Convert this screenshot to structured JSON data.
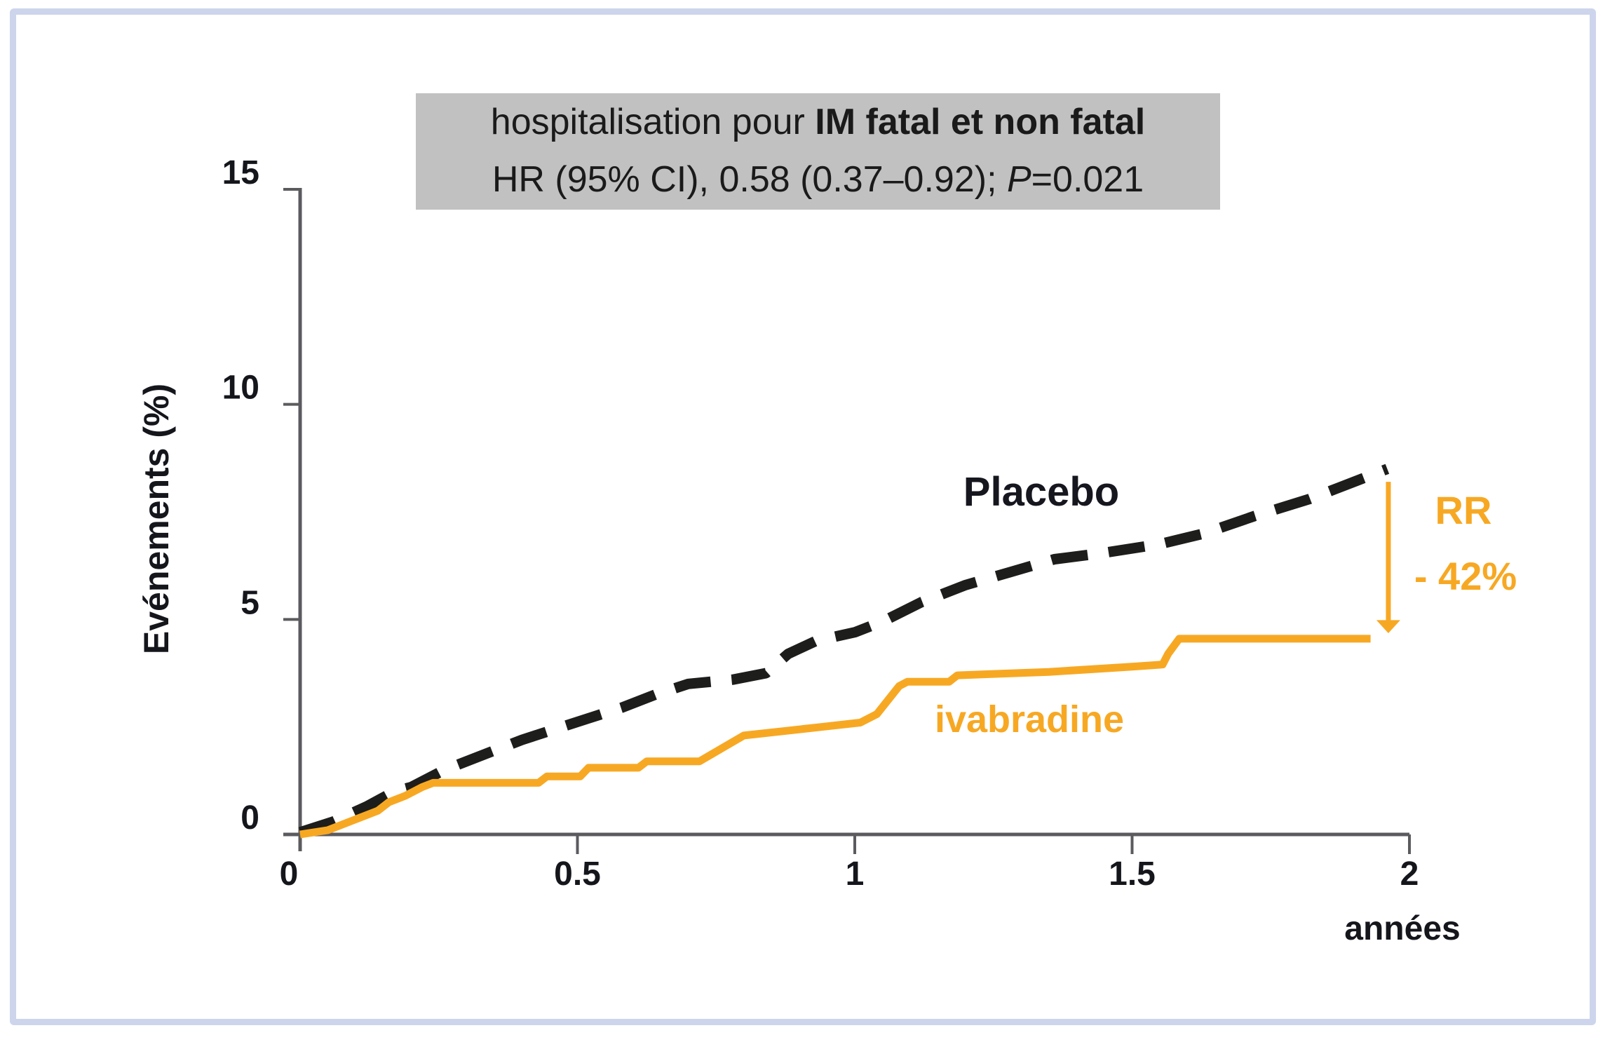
{
  "figure": {
    "border_color": "#cdd5ec",
    "background": "#ffffff"
  },
  "title_box": {
    "background": "#c1c1c1",
    "line1_regular": "hospitalisation pour ",
    "line1_bold": "IM fatal et non fatal",
    "line2_prefix": "HR (95% CI), 0.58 (0.37–0.92); ",
    "line2_italic": "P",
    "line2_suffix": "=0.021"
  },
  "chart_data": {
    "type": "line",
    "title": "hospitalisation pour IM fatal et non fatal",
    "subtitle": "HR (95% CI), 0.58 (0.37–0.92); P=0.021",
    "xlabel": "années",
    "ylabel": "Evénements  (%)",
    "xlim": [
      0,
      2
    ],
    "ylim": [
      0,
      15
    ],
    "x_ticks": [
      0,
      0.5,
      1,
      1.5,
      2
    ],
    "x_tick_labels": [
      "0",
      "0.5",
      "1",
      "1.5",
      "2"
    ],
    "y_ticks": [
      0,
      5,
      10,
      15
    ],
    "y_tick_labels": [
      "0",
      "5",
      "10",
      "15"
    ],
    "grid": false,
    "legend_position": "inline-labels",
    "series": [
      {
        "name": "Placebo",
        "style": "dashed",
        "color": "#1d1d1b",
        "points": [
          [
            0,
            0.05
          ],
          [
            0.06,
            0.3
          ],
          [
            0.12,
            0.65
          ],
          [
            0.17,
            1.0
          ],
          [
            0.2,
            1.1
          ],
          [
            0.26,
            1.5
          ],
          [
            0.33,
            1.85
          ],
          [
            0.4,
            2.2
          ],
          [
            0.46,
            2.45
          ],
          [
            0.52,
            2.7
          ],
          [
            0.58,
            2.95
          ],
          [
            0.64,
            3.25
          ],
          [
            0.7,
            3.5
          ],
          [
            0.78,
            3.6
          ],
          [
            0.84,
            3.75
          ],
          [
            0.88,
            4.2
          ],
          [
            0.93,
            4.5
          ],
          [
            1.0,
            4.7
          ],
          [
            1.05,
            4.95
          ],
          [
            1.12,
            5.4
          ],
          [
            1.2,
            5.8
          ],
          [
            1.28,
            6.1
          ],
          [
            1.36,
            6.4
          ],
          [
            1.45,
            6.55
          ],
          [
            1.55,
            6.75
          ],
          [
            1.63,
            7.0
          ],
          [
            1.72,
            7.4
          ],
          [
            1.82,
            7.8
          ],
          [
            1.9,
            8.2
          ],
          [
            1.96,
            8.5
          ]
        ]
      },
      {
        "name": "ivabradine",
        "style": "solid",
        "color": "#f7a823",
        "points": [
          [
            0,
            0
          ],
          [
            0.05,
            0.1
          ],
          [
            0.1,
            0.35
          ],
          [
            0.14,
            0.55
          ],
          [
            0.16,
            0.75
          ],
          [
            0.19,
            0.9
          ],
          [
            0.22,
            1.1
          ],
          [
            0.24,
            1.2
          ],
          [
            0.43,
            1.2
          ],
          [
            0.445,
            1.35
          ],
          [
            0.505,
            1.35
          ],
          [
            0.52,
            1.55
          ],
          [
            0.61,
            1.55
          ],
          [
            0.625,
            1.7
          ],
          [
            0.72,
            1.7
          ],
          [
            0.76,
            2.0
          ],
          [
            0.8,
            2.3
          ],
          [
            0.87,
            2.4
          ],
          [
            0.94,
            2.5
          ],
          [
            1.01,
            2.6
          ],
          [
            1.04,
            2.8
          ],
          [
            1.08,
            3.45
          ],
          [
            1.095,
            3.55
          ],
          [
            1.17,
            3.55
          ],
          [
            1.185,
            3.7
          ],
          [
            1.35,
            3.78
          ],
          [
            1.5,
            3.9
          ],
          [
            1.555,
            3.95
          ],
          [
            1.565,
            4.2
          ],
          [
            1.585,
            4.55
          ],
          [
            1.93,
            4.55
          ]
        ]
      }
    ],
    "annotation": {
      "rr_label": "RR",
      "pct_label": "- 42%",
      "color": "#f7a823",
      "arrow_x": 1.962,
      "arrow_from_pct": 8.2,
      "arrow_to_pct": 4.95,
      "arrow_tip_pct": 4.68
    }
  },
  "labels": {
    "placebo": "Placebo",
    "ivabradine": "ivabradine",
    "rr": "RR",
    "pct": "- 42%",
    "xunit": "années",
    "ylabel": "Evénements  (%)"
  }
}
